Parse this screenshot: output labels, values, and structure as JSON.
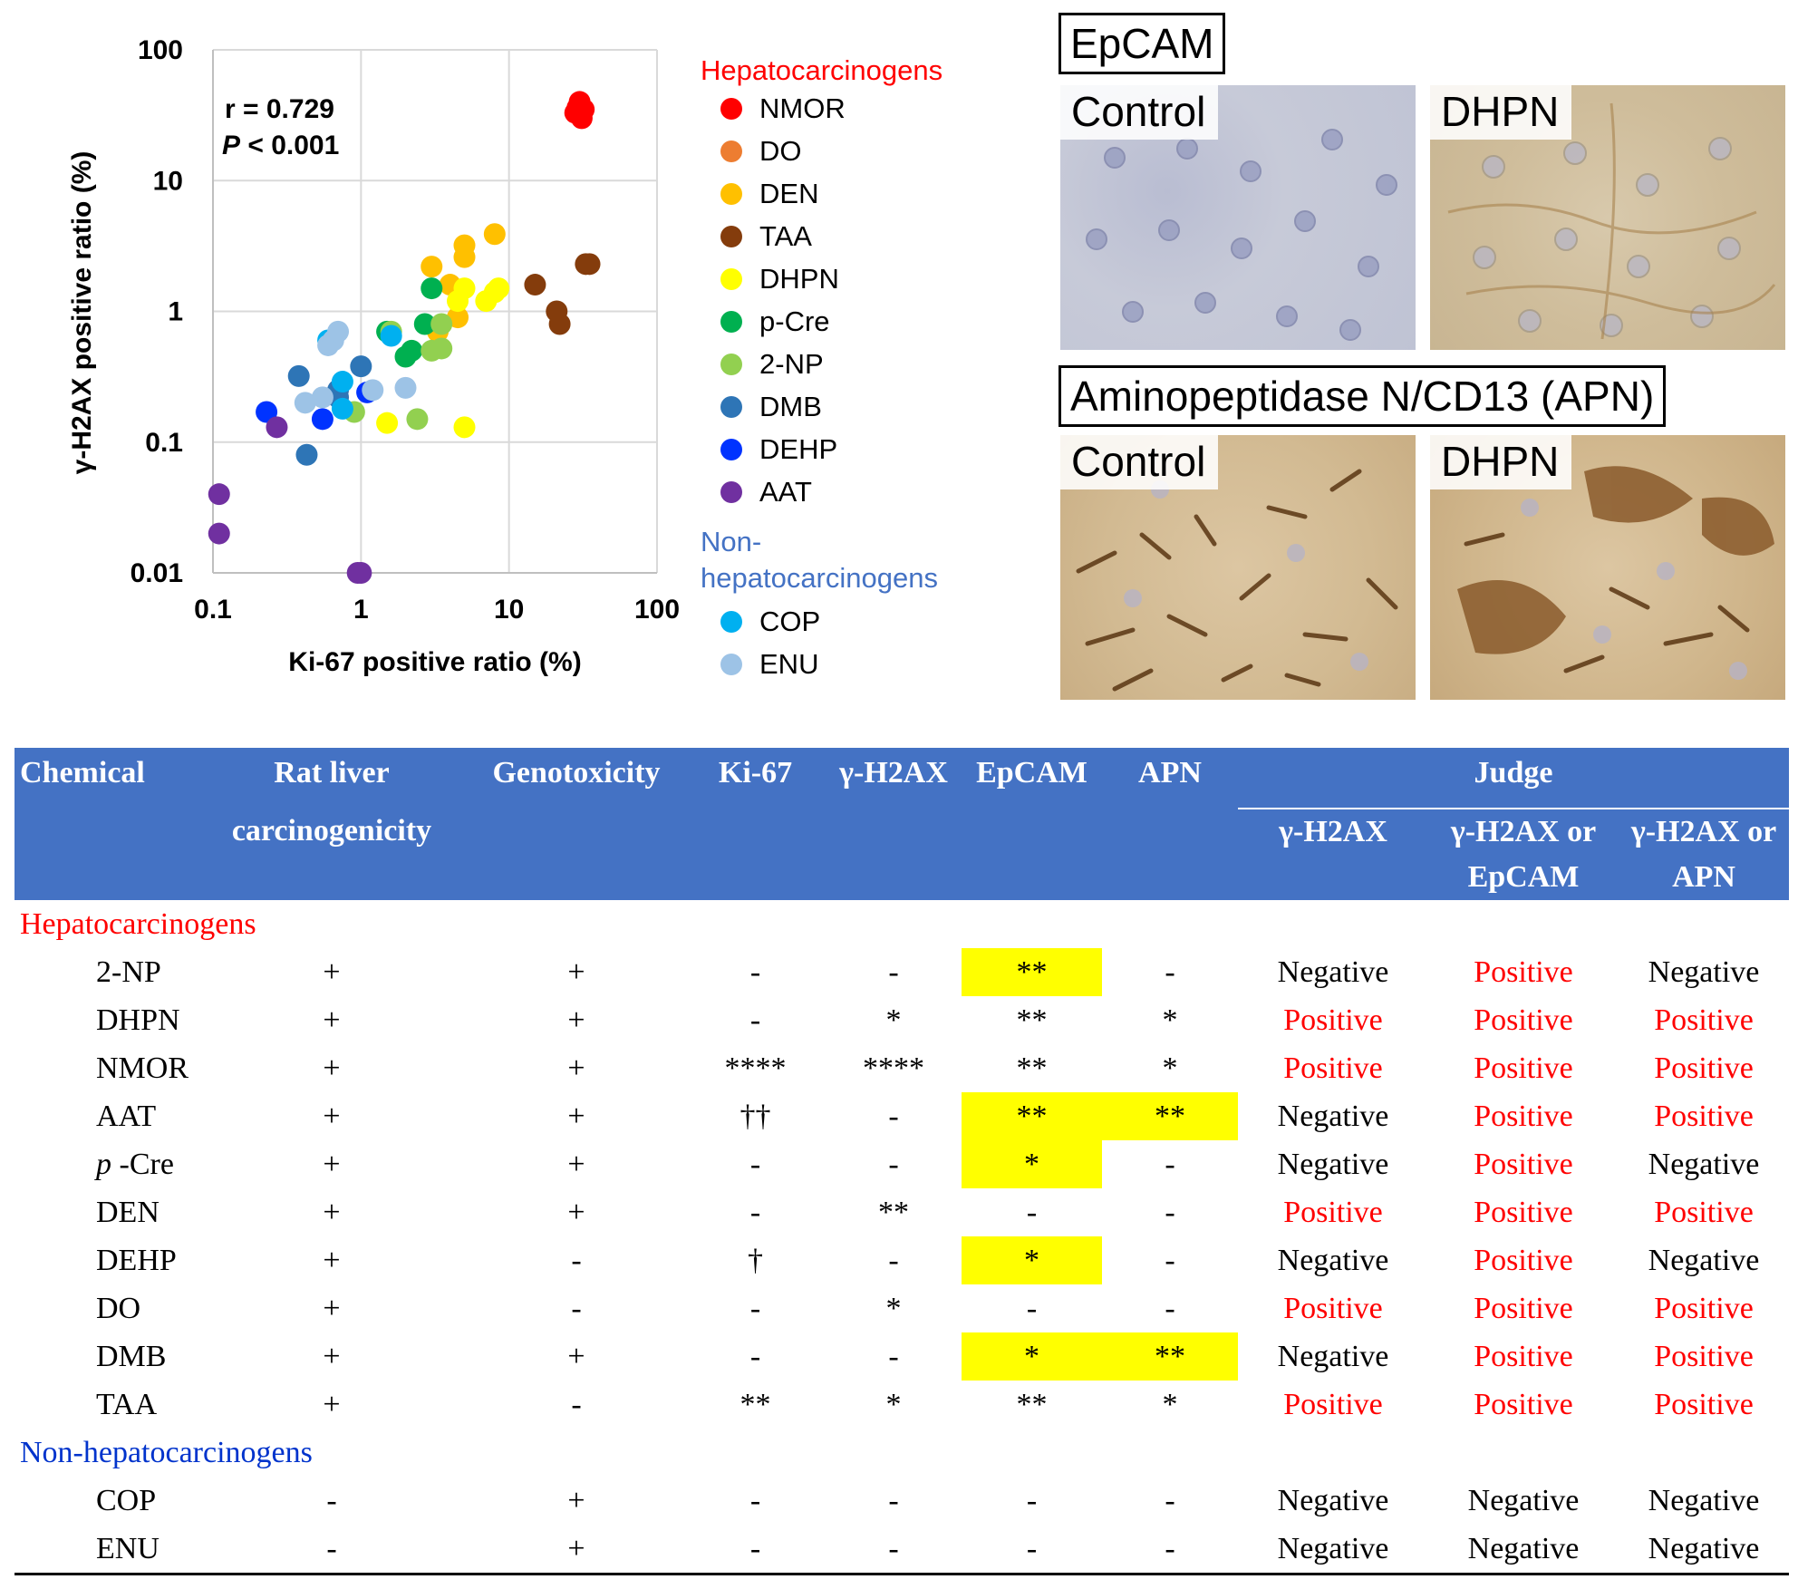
{
  "chart_data": {
    "type": "scatter",
    "xlabel": "Ki-67 positive ratio (%)",
    "ylabel": "γ-H2AX positive ratio (%)",
    "xscale": "log",
    "yscale": "log",
    "xlim": [
      0.1,
      100
    ],
    "ylim": [
      0.01,
      100
    ],
    "xticks": [
      "0.1",
      "1",
      "10",
      "100"
    ],
    "yticks": [
      "0.01",
      "0.1",
      "1",
      "10",
      "100"
    ],
    "grid": true,
    "annotation_r": "r = 0.729",
    "annotation_p_letter": "P",
    "annotation_p_rest": " < 0.001",
    "legend_placement": "right",
    "legend_groups": [
      {
        "title": "Hepatocarcinogens",
        "color": "#ff0000",
        "entries": [
          "NMOR",
          "DO",
          "DEN",
          "TAA",
          "DHPN",
          "p-Cre",
          "2-NP",
          "DMB",
          "DEHP",
          "AAT"
        ]
      },
      {
        "title": "Non-hepatocarcinogens",
        "color": "#4472c4",
        "entries": [
          "COP",
          "ENU"
        ]
      }
    ],
    "series": [
      {
        "name": "NMOR",
        "color": "#ff0000",
        "x": [
          30,
          32,
          28,
          31,
          29
        ],
        "y": [
          40,
          35,
          33,
          30,
          36
        ]
      },
      {
        "name": "DO",
        "color": "#ed7d31",
        "x": [],
        "y": []
      },
      {
        "name": "DEN",
        "color": "#ffc000",
        "x": [
          3,
          5,
          5,
          8,
          4,
          3.3,
          4.5
        ],
        "y": [
          2.2,
          3.2,
          2.6,
          3.9,
          1.6,
          0.7,
          0.9
        ]
      },
      {
        "name": "TAA",
        "color": "#843c0c",
        "x": [
          15,
          21,
          22,
          33,
          35
        ],
        "y": [
          1.6,
          1.0,
          0.8,
          2.3,
          2.3
        ]
      },
      {
        "name": "DHPN",
        "color": "#ffff00",
        "x": [
          4.5,
          7,
          8,
          8.5,
          5,
          5,
          1.5
        ],
        "y": [
          1.2,
          1.2,
          1.4,
          1.5,
          1.5,
          0.13,
          0.14
        ]
      },
      {
        "name": "p-Cre",
        "color": "#00b050",
        "x": [
          1.5,
          2,
          2.2,
          2.7,
          3
        ],
        "y": [
          0.7,
          0.45,
          0.5,
          0.8,
          1.5
        ]
      },
      {
        "name": "2-NP",
        "color": "#92d050",
        "x": [
          0.9,
          2.4,
          3,
          3.5,
          3.5,
          1.6
        ],
        "y": [
          0.17,
          0.15,
          0.5,
          0.52,
          0.8,
          0.7
        ]
      },
      {
        "name": "DMB",
        "color": "#2e75b6",
        "x": [
          0.38,
          0.43,
          0.7,
          0.7,
          1.0
        ],
        "y": [
          0.32,
          0.08,
          0.22,
          0.25,
          0.38
        ]
      },
      {
        "name": "DEHP",
        "color": "#0033ff",
        "x": [
          0.23,
          0.55,
          1.1
        ],
        "y": [
          0.17,
          0.15,
          0.24
        ]
      },
      {
        "name": "AAT",
        "color": "#7030a0",
        "x": [
          0.11,
          0.11,
          0.27,
          0.95,
          1.0
        ],
        "y": [
          0.04,
          0.02,
          0.13,
          0.01,
          0.01
        ]
      },
      {
        "name": "COP",
        "color": "#00b0f0",
        "x": [
          0.6,
          0.75,
          0.75,
          1.6
        ],
        "y": [
          0.6,
          0.29,
          0.18,
          0.65
        ]
      },
      {
        "name": "ENU",
        "color": "#9dc3e6",
        "x": [
          0.42,
          0.55,
          0.6,
          0.65,
          0.7,
          1.2,
          2.0
        ],
        "y": [
          0.2,
          0.22,
          0.55,
          0.6,
          0.7,
          0.25,
          0.26
        ]
      }
    ]
  },
  "micrographs": {
    "epcam_title": "EpCAM",
    "apn_title": "Aminopeptidase N/CD13 (APN)",
    "labels": {
      "control": "Control",
      "dhpn": "DHPN"
    }
  },
  "table": {
    "headers": {
      "chemical": "Chemical",
      "rat_liver_1": "Rat liver",
      "rat_liver_2": "carcinogenicity",
      "genotoxicity": "Genotoxicity",
      "ki67": "Ki-67",
      "gh2ax": "γ-H2AX",
      "epcam": "EpCAM",
      "apn": "APN",
      "judge": "Judge",
      "judge_gh2ax": "γ-H2AX",
      "judge_ep_1": "γ-H2AX or",
      "judge_ep_2": "EpCAM",
      "judge_apn_1": "γ-H2AX or",
      "judge_apn_2": "APN"
    },
    "section_hepato": "Hepatocarcinogens",
    "section_nonhepato": "Non-hepatocarcinogens",
    "rows": [
      {
        "chem_italic": "",
        "chem": "2-NP",
        "rat": "+",
        "geno": "+",
        "ki67": "-",
        "gh2ax": "-",
        "epcam": "**",
        "apn": "-",
        "j1": "Negative",
        "j2": "Positive",
        "j3": "Negative"
      },
      {
        "chem_italic": "",
        "chem": "DHPN",
        "rat": "+",
        "geno": "+",
        "ki67": "-",
        "gh2ax": "*",
        "epcam": "**",
        "apn": "*",
        "j1": "Positive",
        "j2": "Positive",
        "j3": "Positive"
      },
      {
        "chem_italic": "",
        "chem": "NMOR",
        "rat": "+",
        "geno": "+",
        "ki67": "****",
        "gh2ax": "****",
        "epcam": "**",
        "apn": "*",
        "j1": "Positive",
        "j2": "Positive",
        "j3": "Positive"
      },
      {
        "chem_italic": "",
        "chem": "AAT",
        "rat": "+",
        "geno": "+",
        "ki67": "††",
        "gh2ax": "-",
        "epcam": "**",
        "apn": "**",
        "j1": "Negative",
        "j2": "Positive",
        "j3": "Positive"
      },
      {
        "chem_italic": "p",
        "chem": " -Cre",
        "rat": "+",
        "geno": "+",
        "ki67": "-",
        "gh2ax": "-",
        "epcam": "*",
        "apn": "-",
        "j1": "Negative",
        "j2": "Positive",
        "j3": "Negative"
      },
      {
        "chem_italic": "",
        "chem": "DEN",
        "rat": "+",
        "geno": "+",
        "ki67": "-",
        "gh2ax": "**",
        "epcam": "-",
        "apn": "-",
        "j1": "Positive",
        "j2": "Positive",
        "j3": "Positive"
      },
      {
        "chem_italic": "",
        "chem": "DEHP",
        "rat": "+",
        "geno": "-",
        "ki67": "†",
        "gh2ax": "-",
        "epcam": "*",
        "apn": "-",
        "j1": "Negative",
        "j2": "Positive",
        "j3": "Negative"
      },
      {
        "chem_italic": "",
        "chem": "DO",
        "rat": "+",
        "geno": "-",
        "ki67": "-",
        "gh2ax": "*",
        "epcam": "-",
        "apn": "-",
        "j1": "Positive",
        "j2": "Positive",
        "j3": "Positive"
      },
      {
        "chem_italic": "",
        "chem": "DMB",
        "rat": "+",
        "geno": "+",
        "ki67": "-",
        "gh2ax": "-",
        "epcam": "*",
        "apn": "**",
        "j1": "Negative",
        "j2": "Positive",
        "j3": "Positive"
      },
      {
        "chem_italic": "",
        "chem": "TAA",
        "rat": "+",
        "geno": "-",
        "ki67": "**",
        "gh2ax": "*",
        "epcam": "**",
        "apn": "*",
        "j1": "Positive",
        "j2": "Positive",
        "j3": "Positive"
      }
    ],
    "rows_non": [
      {
        "chem": "COP",
        "rat": "-",
        "geno": "+",
        "ki67": "-",
        "gh2ax": "-",
        "epcam": "-",
        "apn": "-",
        "j1": "Negative",
        "j2": "Negative",
        "j3": "Negative"
      },
      {
        "chem": "ENU",
        "rat": "-",
        "geno": "+",
        "ki67": "-",
        "gh2ax": "-",
        "epcam": "-",
        "apn": "-",
        "j1": "Negative",
        "j2": "Negative",
        "j3": "Negative"
      }
    ],
    "highlight": {
      "epcam": [
        0,
        3,
        4,
        6,
        8
      ],
      "apn": [
        3,
        8
      ]
    }
  }
}
